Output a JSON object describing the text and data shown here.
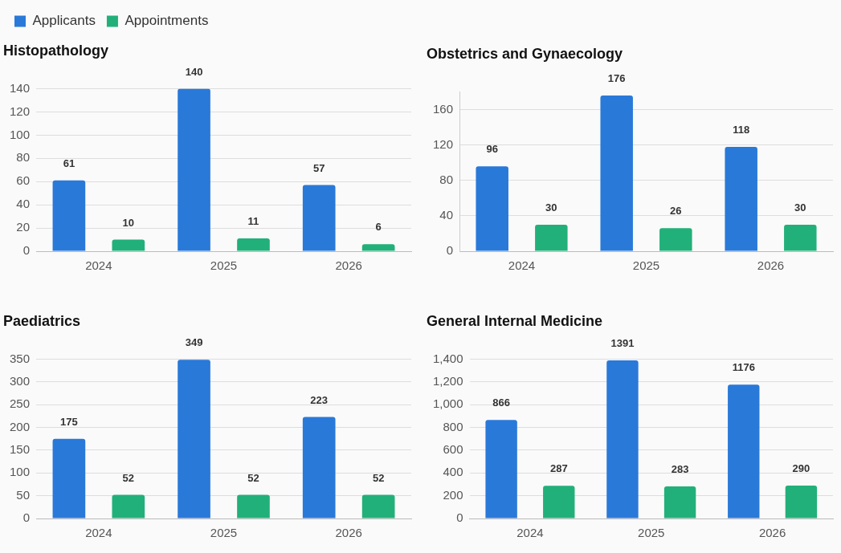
{
  "chart_data": [
    {
      "type": "bar",
      "title": "Histopathology",
      "categories": [
        "2024",
        "2025",
        "2026"
      ],
      "series": [
        {
          "name": "Applicants",
          "color": "#2979d9",
          "values": [
            61,
            140,
            57
          ]
        },
        {
          "name": "Appointments",
          "color": "#22b07a",
          "values": [
            10,
            11,
            6
          ]
        }
      ],
      "ylim": [
        0,
        140
      ],
      "yticks": [
        0,
        20,
        40,
        60,
        80,
        100,
        120,
        140
      ],
      "grid": "y",
      "legend": "top left",
      "data_labels": true
    },
    {
      "type": "bar",
      "title": "Obstetrics and Gynaecology",
      "categories": [
        "2024",
        "2025",
        "2026"
      ],
      "series": [
        {
          "color": "#2979d9",
          "values": [
            96,
            176,
            118
          ]
        },
        {
          "color": "#22b07a",
          "values": [
            30,
            26,
            30
          ]
        }
      ],
      "ylim": [
        0,
        180
      ],
      "yticks": [
        0,
        40,
        80,
        120,
        160
      ],
      "grid": "y",
      "data_labels": true
    },
    {
      "type": "bar",
      "title": "Paediatrics",
      "categories": [
        "2024",
        "2025",
        "2026"
      ],
      "series": [
        {
          "color": "#2979d9",
          "values": [
            175,
            349,
            223
          ]
        },
        {
          "color": "#22b07a",
          "values": [
            52,
            52,
            52
          ]
        }
      ],
      "ylim": [
        0,
        350
      ],
      "yticks": [
        0,
        50,
        100,
        150,
        200,
        250,
        300,
        350
      ],
      "grid": "y",
      "data_labels": true
    },
    {
      "type": "bar",
      "title": "General Internal Medicine",
      "categories": [
        "2024",
        "2025",
        "2026"
      ],
      "series": [
        {
          "color": "#2979d9",
          "values": [
            866,
            1391,
            1176
          ]
        },
        {
          "color": "#22b07a",
          "values": [
            287,
            283,
            290
          ]
        }
      ],
      "ylim": [
        0,
        1400
      ],
      "yticks": [
        0,
        200,
        400,
        600,
        800,
        {
          "value": 1000,
          "label": "1,000"
        },
        {
          "value": 1200,
          "label": "1,200"
        },
        {
          "value": 1400,
          "label": "1,400"
        }
      ],
      "grid": "y",
      "data_labels": true
    }
  ]
}
